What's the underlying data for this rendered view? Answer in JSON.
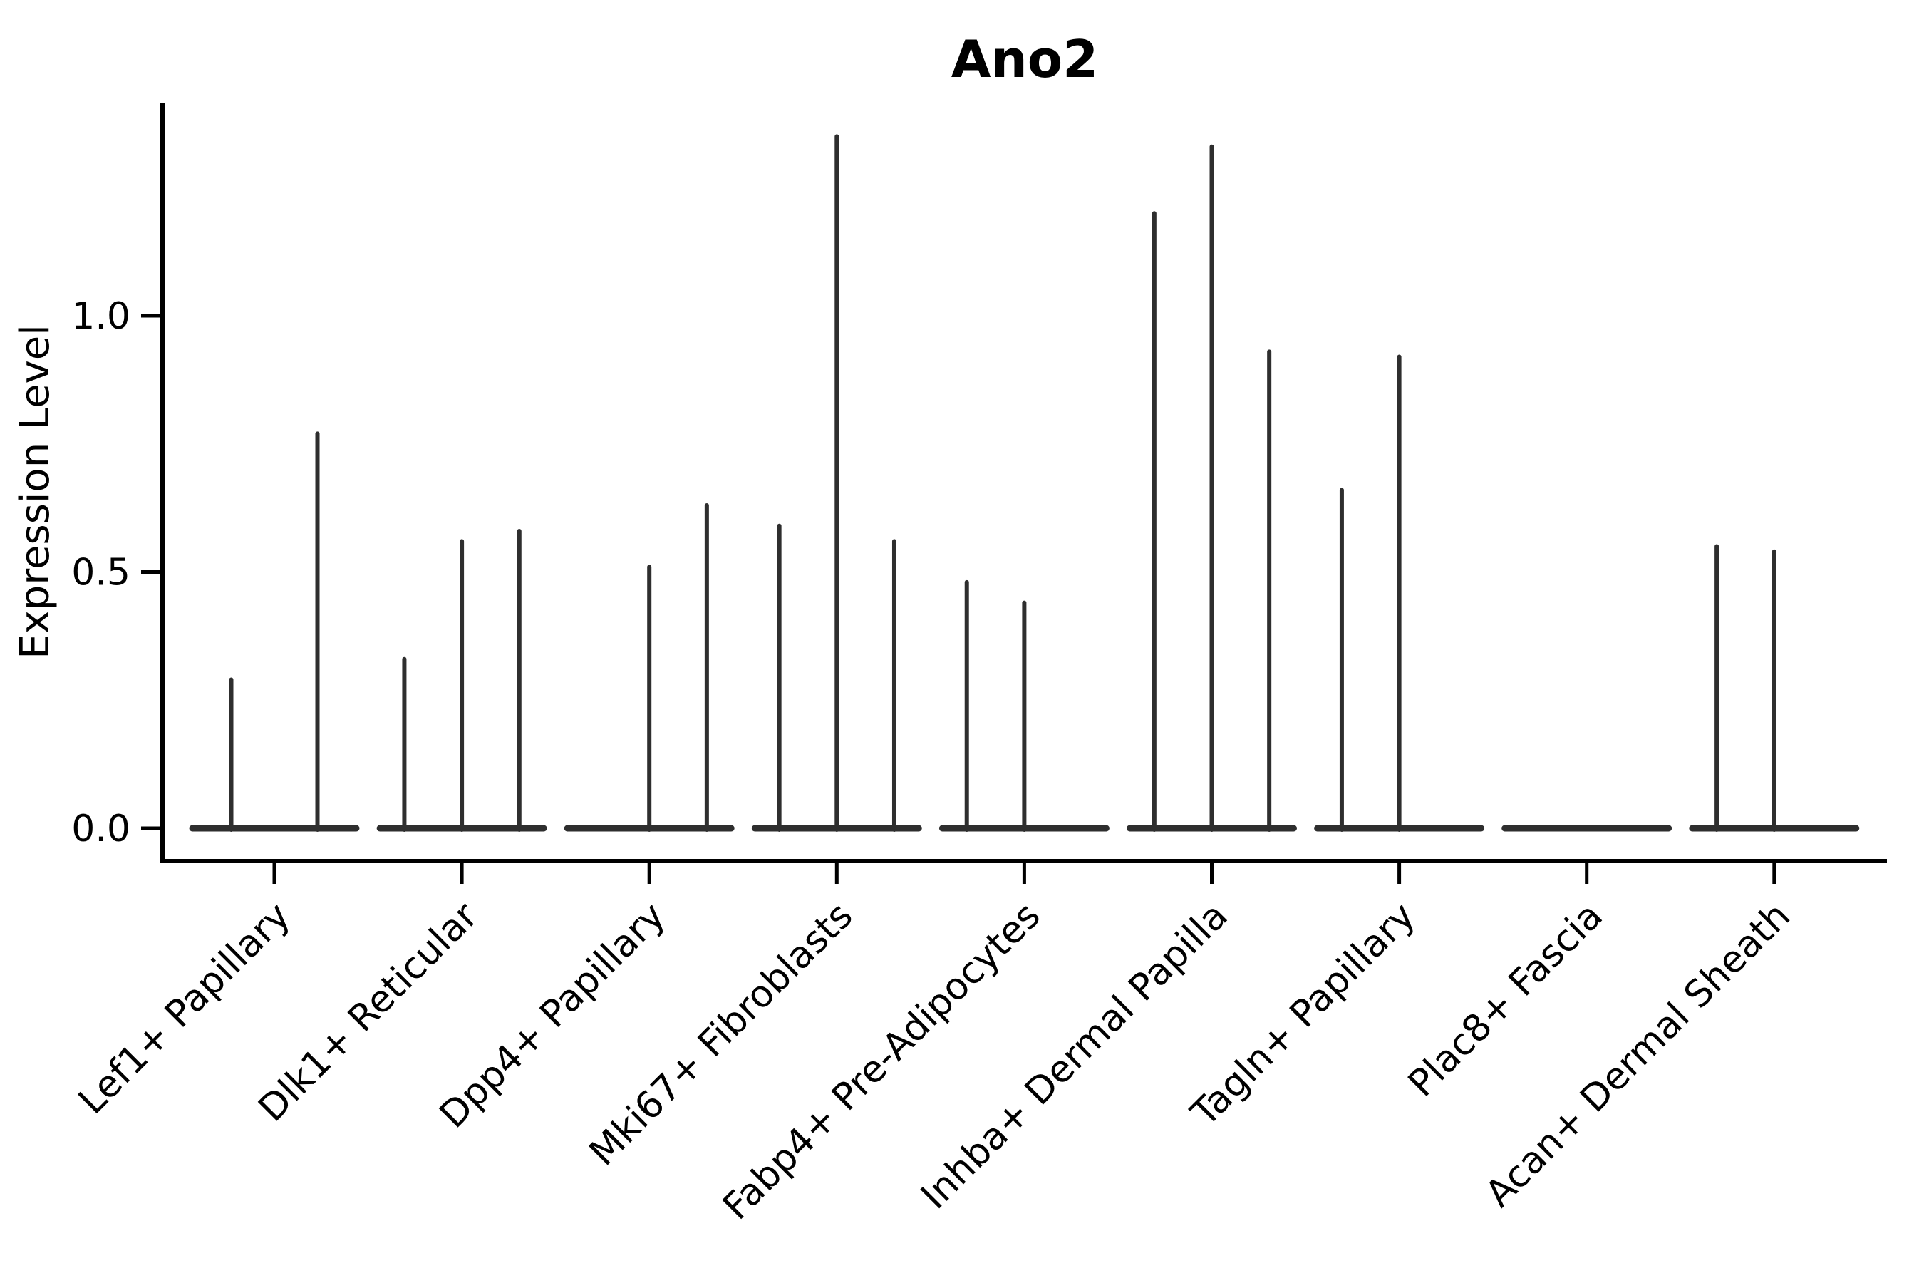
{
  "figure": {
    "background": "#ffffff",
    "spine_color": "#000000",
    "violin_stroke": "#2e2e2e"
  },
  "chart_data": {
    "type": "violin",
    "title": "Ano2",
    "xlabel": "",
    "ylabel": "Expression Level",
    "ylim": [
      -0.064,
      1.414
    ],
    "yticks": [
      0.0,
      0.5,
      1.0
    ],
    "ytick_labels": [
      "0.0",
      "0.5",
      "1.0"
    ],
    "grid": false,
    "legend": "none",
    "categories": [
      {
        "label": "Lef1+ Papillary",
        "violin_max": [
          0.29,
          0.77
        ]
      },
      {
        "label": "Dlk1+ Reticular",
        "violin_max": [
          0.33,
          0.56,
          0.58
        ]
      },
      {
        "label": "Dpp4+ Papillary",
        "violin_max": [
          0.0,
          0.51,
          0.63
        ]
      },
      {
        "label": "Mki67+ Fibroblasts",
        "violin_max": [
          0.59,
          1.35,
          0.56
        ]
      },
      {
        "label": "Fabp4+ Pre-Adipocytes",
        "violin_max": [
          0.48,
          0.44,
          0.0
        ]
      },
      {
        "label": "Inhba+ Dermal Papilla",
        "violin_max": [
          1.2,
          1.33,
          0.93
        ]
      },
      {
        "label": "Tagln+ Papillary",
        "violin_max": [
          0.66,
          0.92,
          0.0
        ]
      },
      {
        "label": "Plac8+ Fascia",
        "violin_max": [
          0.0,
          0.0,
          0.0
        ]
      },
      {
        "label": "Acan+ Dermal Sheath",
        "violin_max": [
          0.55,
          0.54,
          0.0
        ]
      }
    ]
  }
}
